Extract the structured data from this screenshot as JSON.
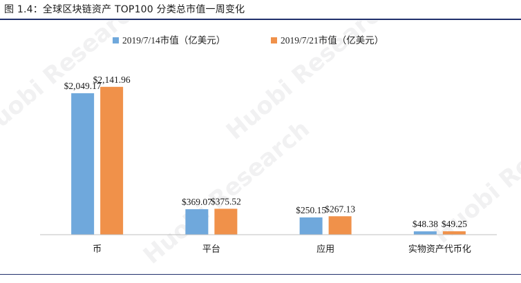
{
  "figure": {
    "title": "图 1.4：全球区块链资产 TOP100 分类总市值一周变化",
    "watermark_text": "Huobi Research"
  },
  "colors": {
    "rule": "#1f2f6b",
    "series_1": "#6fa8dc",
    "series_2": "#f0914a",
    "axis": "#bfbfbf"
  },
  "chart_data": {
    "type": "bar",
    "title": "",
    "categories": [
      "币",
      "平台",
      "应用",
      "实物资产代币化"
    ],
    "series": [
      {
        "name": "2019/7/14市值（亿美元）",
        "values": [
          2049.17,
          369.07,
          250.15,
          48.38
        ],
        "labels": [
          "$2,049.17",
          "$369.07",
          "$250.15",
          "$48.38"
        ]
      },
      {
        "name": "2019/7/21市值（亿美元）",
        "values": [
          2141.96,
          375.52,
          267.13,
          49.25
        ],
        "labels": [
          "$2,141.96",
          "$375.52",
          "$267.13",
          "$49.25"
        ]
      }
    ],
    "xlabel": "",
    "ylabel": "",
    "ylim": [
      0,
      2300
    ],
    "grid": false,
    "legend": "top-center"
  }
}
